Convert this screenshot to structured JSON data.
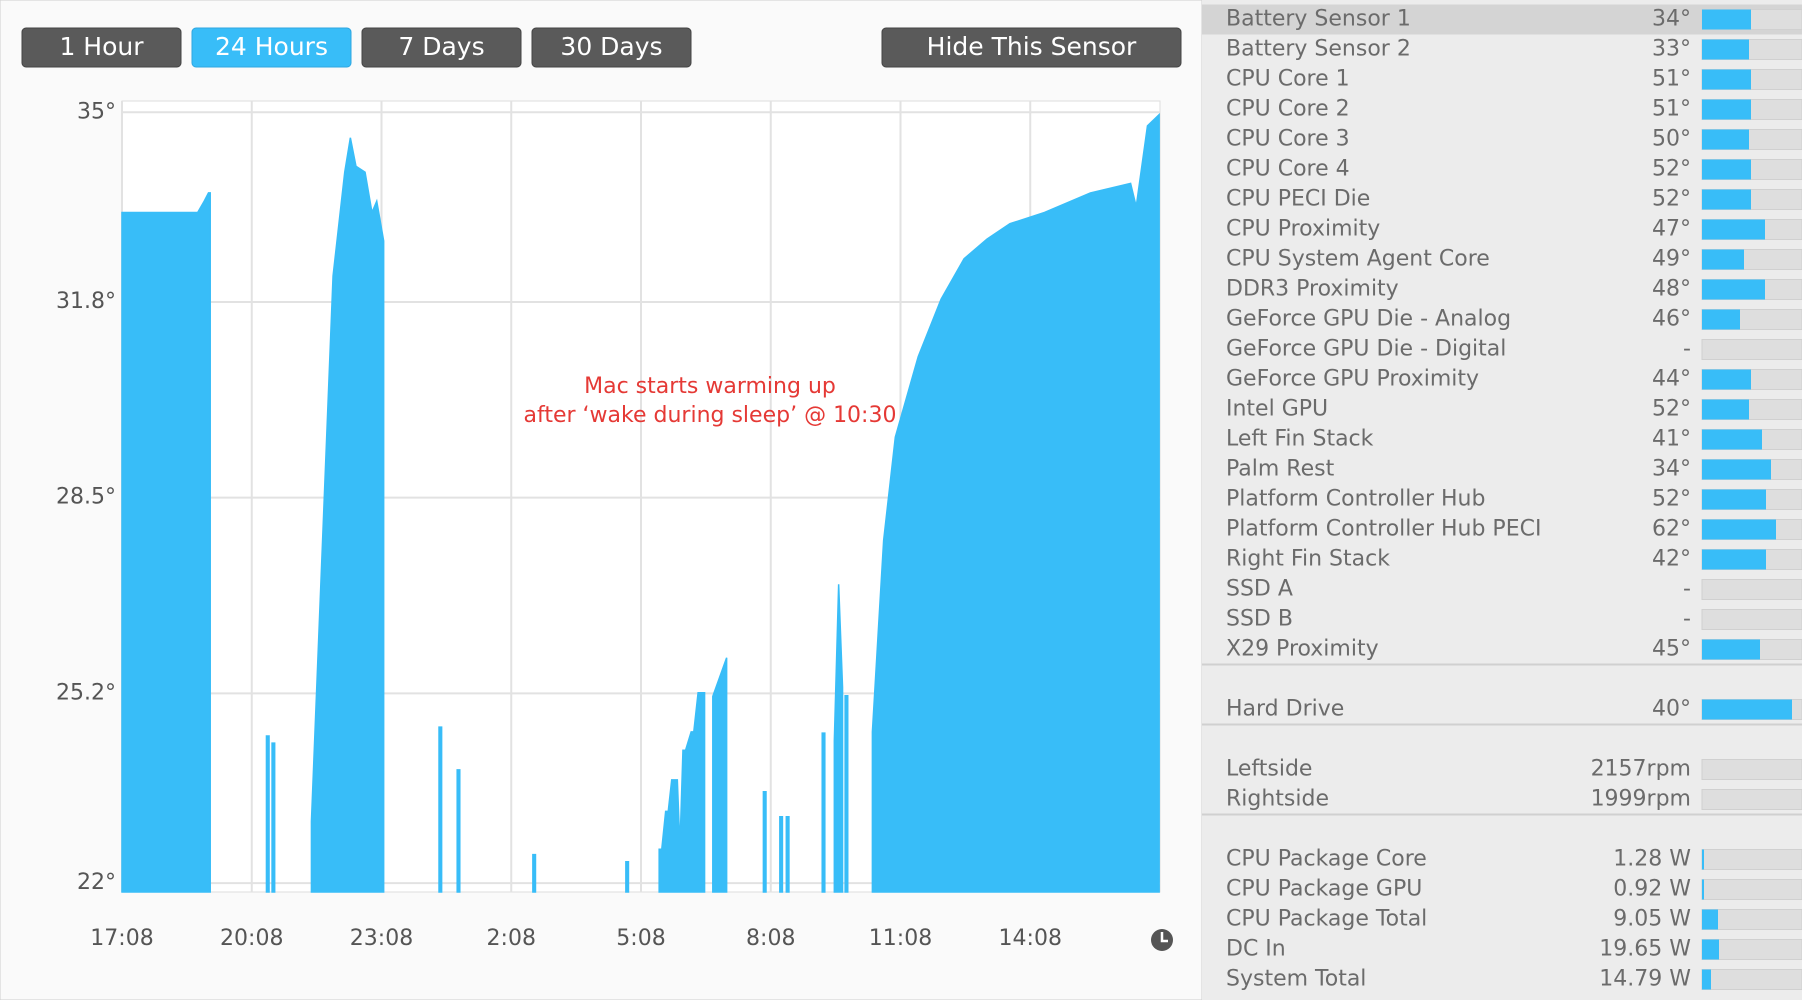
{
  "toolbar": {
    "ranges": [
      "1 Hour",
      "24 Hours",
      "7 Days",
      "30 Days"
    ],
    "active": 1,
    "hide_button": "Hide This Sensor"
  },
  "chart_data": {
    "type": "area",
    "series": [
      {
        "name": "Battery Sensor 1",
        "color": "#38bdf8",
        "x": [
          0,
          1.75,
          1.9,
          2.0,
          2.04,
          null,
          3.34,
          3.4,
          null,
          3.47,
          3.53,
          null,
          4.38,
          4.88,
          5.15,
          5.28,
          5.41,
          5.62,
          5.78,
          5.89,
          6.05,
          null,
          7.33,
          7.39,
          null,
          7.75,
          7.81,
          null,
          9.5,
          9.56,
          null,
          11.65,
          11.71,
          null,
          12.42,
          12.48,
          12.57,
          12.63,
          12.71,
          12.84,
          12.9,
          12.97,
          13.03,
          13.16,
          13.22,
          13.32,
          13.47,
          null,
          13.66,
          13.98,
          null,
          14.83,
          14.89,
          null,
          15.21,
          15.27,
          null,
          15.36,
          15.42,
          null,
          16.19,
          16.25,
          null,
          16.47,
          16.57,
          16.66,
          null,
          16.72,
          16.78,
          null,
          17.35,
          17.61,
          17.88,
          18.41,
          18.94,
          19.47,
          20.0,
          20.53,
          21.33,
          22.39,
          23.32,
          23.45,
          23.71,
          23.98
        ],
        "values": [
          33.31,
          33.31,
          33.5,
          33.64,
          33.64,
          null,
          24.48,
          24.48,
          null,
          24.36,
          24.36,
          null,
          23.04,
          32.24,
          33.99,
          34.57,
          34.09,
          33.99,
          33.31,
          33.5,
          32.83,
          null,
          24.63,
          24.63,
          null,
          23.91,
          23.91,
          null,
          22.48,
          22.48,
          null,
          22.36,
          22.36,
          null,
          22.57,
          22.57,
          23.21,
          23.21,
          23.74,
          23.74,
          22.6,
          24.24,
          24.24,
          24.55,
          24.55,
          25.21,
          25.21,
          null,
          25.15,
          25.8,
          null,
          23.54,
          23.54,
          null,
          23.12,
          23.12,
          null,
          23.12,
          23.12,
          null,
          24.53,
          24.53,
          null,
          24.4,
          27.04,
          25.3,
          null,
          25.16,
          25.16,
          null,
          24.55,
          27.78,
          29.52,
          30.88,
          31.85,
          32.53,
          32.86,
          33.12,
          33.31,
          33.64,
          33.8,
          33.41,
          34.77,
          34.96
        ]
      }
    ],
    "xlim": [
      0,
      24
    ],
    "ylim": [
      21.85,
      35.19
    ],
    "xticks": [
      {
        "value": 0,
        "label": "17:08"
      },
      {
        "value": 3,
        "label": "20:08"
      },
      {
        "value": 6,
        "label": "23:08"
      },
      {
        "value": 9,
        "label": "2:08"
      },
      {
        "value": 12,
        "label": "5:08"
      },
      {
        "value": 15,
        "label": "8:08"
      },
      {
        "value": 18,
        "label": "11:08"
      },
      {
        "value": 21,
        "label": "14:08"
      }
    ],
    "yticks": [
      {
        "value": 22,
        "label": "22°"
      },
      {
        "value": 25.2,
        "label": "25.2°"
      },
      {
        "value": 28.5,
        "label": "28.5°"
      },
      {
        "value": 31.8,
        "label": "31.8°"
      },
      {
        "value": 35,
        "label": "35°"
      }
    ],
    "grid": true,
    "annotation": [
      "Mac starts warming up",
      "after ‘wake during sleep’ @ 10:30"
    ]
  },
  "sensors": {
    "selected": 0,
    "groups": [
      {
        "rows": [
          {
            "name": "Battery Sensor 1",
            "value": "34°",
            "level": 49
          },
          {
            "name": "Battery Sensor 2",
            "value": "33°",
            "level": 47
          },
          {
            "name": "CPU Core 1",
            "value": "51°",
            "level": 49
          },
          {
            "name": "CPU Core 2",
            "value": "51°",
            "level": 49
          },
          {
            "name": "CPU Core 3",
            "value": "50°",
            "level": 47
          },
          {
            "name": "CPU Core 4",
            "value": "52°",
            "level": 49
          },
          {
            "name": "CPU PECI Die",
            "value": "52°",
            "level": 49
          },
          {
            "name": "CPU Proximity",
            "value": "47°",
            "level": 63
          },
          {
            "name": "CPU System Agent Core",
            "value": "49°",
            "level": 42
          },
          {
            "name": "DDR3 Proximity",
            "value": "48°",
            "level": 63
          },
          {
            "name": "GeForce GPU Die - Analog",
            "value": "46°",
            "level": 38
          },
          {
            "name": "GeForce GPU Die - Digital",
            "value": "-",
            "level": null
          },
          {
            "name": "GeForce GPU Proximity",
            "value": "44°",
            "level": 49
          },
          {
            "name": "Intel GPU",
            "value": "52°",
            "level": 47
          },
          {
            "name": "Left Fin Stack",
            "value": "41°",
            "level": 60
          },
          {
            "name": "Palm Rest",
            "value": "34°",
            "level": 69
          },
          {
            "name": "Platform Controller Hub",
            "value": "52°",
            "level": 64
          },
          {
            "name": "Platform Controller Hub PECI",
            "value": "62°",
            "level": 74
          },
          {
            "name": "Right Fin Stack",
            "value": "42°",
            "level": 64
          },
          {
            "name": "SSD A",
            "value": "-",
            "level": null
          },
          {
            "name": "SSD B",
            "value": "-",
            "level": null
          },
          {
            "name": "X29 Proximity",
            "value": "45°",
            "level": 58
          }
        ]
      },
      {
        "rows": [
          {
            "name": "Hard Drive",
            "value": "40°",
            "level": 90
          }
        ]
      },
      {
        "rows": [
          {
            "name": "Leftside",
            "value": "2157rpm",
            "level": null
          },
          {
            "name": "Rightside",
            "value": "1999rpm",
            "level": null
          }
        ]
      },
      {
        "rows": [
          {
            "name": "CPU Package Core",
            "value": "1.28 W",
            "level": 2
          },
          {
            "name": "CPU Package GPU",
            "value": "0.92 W",
            "level": 2
          },
          {
            "name": "CPU Package Total",
            "value": "9.05 W",
            "level": 16
          },
          {
            "name": "DC In",
            "value": "19.65 W",
            "level": 17
          },
          {
            "name": "System Total",
            "value": "14.79 W",
            "level": 9
          }
        ]
      }
    ]
  }
}
